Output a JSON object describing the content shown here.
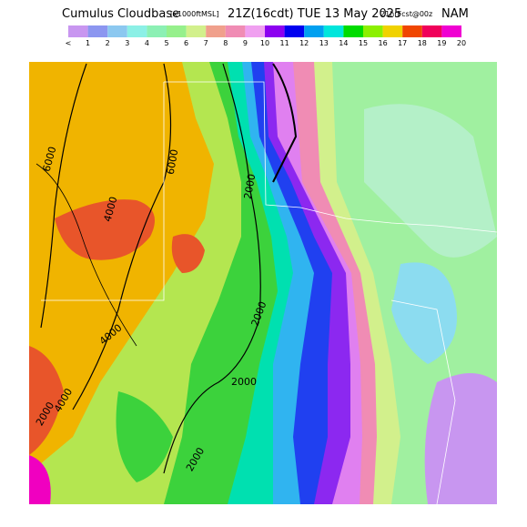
{
  "header": {
    "title": "Cumulus Cloudbase",
    "units": "[x1000ftMSL]",
    "valid": "21Z(16cdt) TUE 13 May 2025",
    "forecast": "21hrFcst@00z",
    "model": "NAM"
  },
  "legend": {
    "labels": [
      "<",
      "1",
      "2",
      "3",
      "4",
      "5",
      "6",
      "7",
      "8",
      "9",
      "10",
      "11",
      "12",
      "13",
      "14",
      "15",
      "16",
      "17",
      "18",
      "19",
      "20"
    ],
    "colors": [
      "#c896f0",
      "#8c96f0",
      "#8cc8f0",
      "#8cf0e6",
      "#8cf0b4",
      "#96f08c",
      "#d2f08c",
      "#f0a08c",
      "#f08cb4",
      "#f0a0f0",
      "#8c00f0",
      "#0000f0",
      "#00a0f0",
      "#00e6dc",
      "#00dc00",
      "#8cf000",
      "#f0d200",
      "#f04600",
      "#f0005a",
      "#f000d2"
    ]
  },
  "contours": {
    "labels": [
      "6000",
      "6000",
      "4000",
      "2000",
      "4000",
      "2000",
      "2000",
      "4000",
      "2000",
      "2000"
    ]
  }
}
